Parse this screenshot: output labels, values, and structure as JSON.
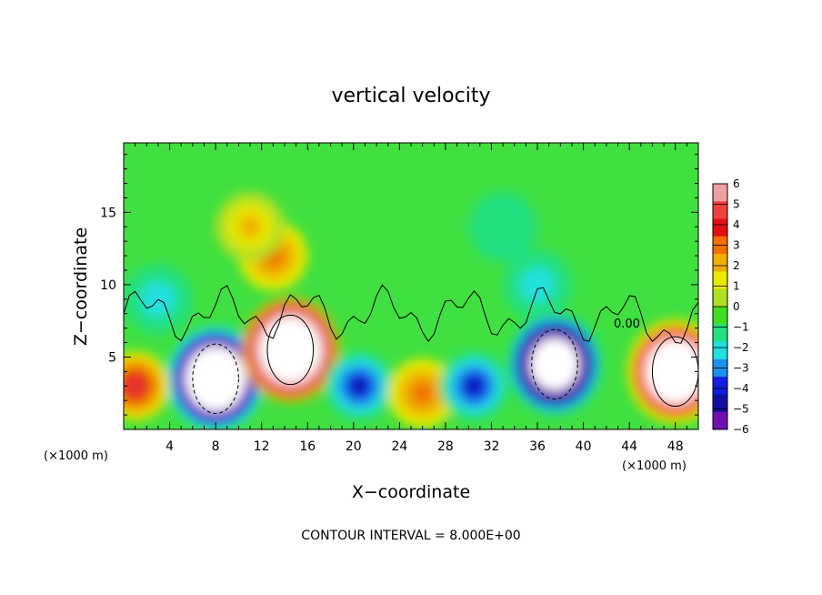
{
  "chart_data": {
    "type": "heatmap",
    "title": "vertical velocity",
    "xlabel": "X−coordinate",
    "ylabel": "Z−coordinate",
    "x_unit_left": "(×1000 m)",
    "x_unit_right": "(×1000 m)",
    "x_ticks": [
      "4",
      "8",
      "12",
      "16",
      "20",
      "24",
      "28",
      "32",
      "36",
      "40",
      "44",
      "48"
    ],
    "x_tick_values": [
      4,
      8,
      12,
      16,
      20,
      24,
      28,
      32,
      36,
      40,
      44,
      48
    ],
    "y_ticks": [
      "5",
      "10",
      "15"
    ],
    "y_tick_values": [
      5,
      10,
      15
    ],
    "xlim": [
      0,
      50
    ],
    "ylim": [
      0,
      19.8
    ],
    "colorbar_ticks": [
      "6",
      "5",
      "4",
      "3",
      "2",
      "1",
      "0",
      "−1",
      "−2",
      "−3",
      "−4",
      "−5",
      "−6"
    ],
    "colorbar_range": [
      -6,
      6
    ],
    "colorbar_colors": [
      "#f0a0a0",
      "#f04040",
      "#e01010",
      "#f07000",
      "#f0b000",
      "#e8e800",
      "#b0e020",
      "#40e020",
      "#20e080",
      "#20e0e0",
      "#2090f0",
      "#1020e0",
      "#1010a0",
      "#7010b0"
    ],
    "contour_label": "0.00",
    "footer": "CONTOUR INTERVAL = 8.000E+00",
    "features": [
      {
        "x": 3,
        "z": 9,
        "w": -2
      },
      {
        "x": 8,
        "z": 3.5,
        "w": -14
      },
      {
        "x": 14.5,
        "z": 5.5,
        "w": 14
      },
      {
        "x": 13,
        "z": 12,
        "w": 3
      },
      {
        "x": 11,
        "z": 14,
        "w": 2.5
      },
      {
        "x": 20.5,
        "z": 3,
        "w": -5
      },
      {
        "x": 26,
        "z": 2.5,
        "w": 3
      },
      {
        "x": 30.5,
        "z": 3,
        "w": -4.5
      },
      {
        "x": 37.5,
        "z": 4.5,
        "w": -12
      },
      {
        "x": 36,
        "z": 10,
        "w": -2
      },
      {
        "x": 48,
        "z": 4,
        "w": 13
      },
      {
        "x": 1,
        "z": 3,
        "w": 5
      },
      {
        "x": 33,
        "z": 14,
        "w": -1
      }
    ]
  }
}
